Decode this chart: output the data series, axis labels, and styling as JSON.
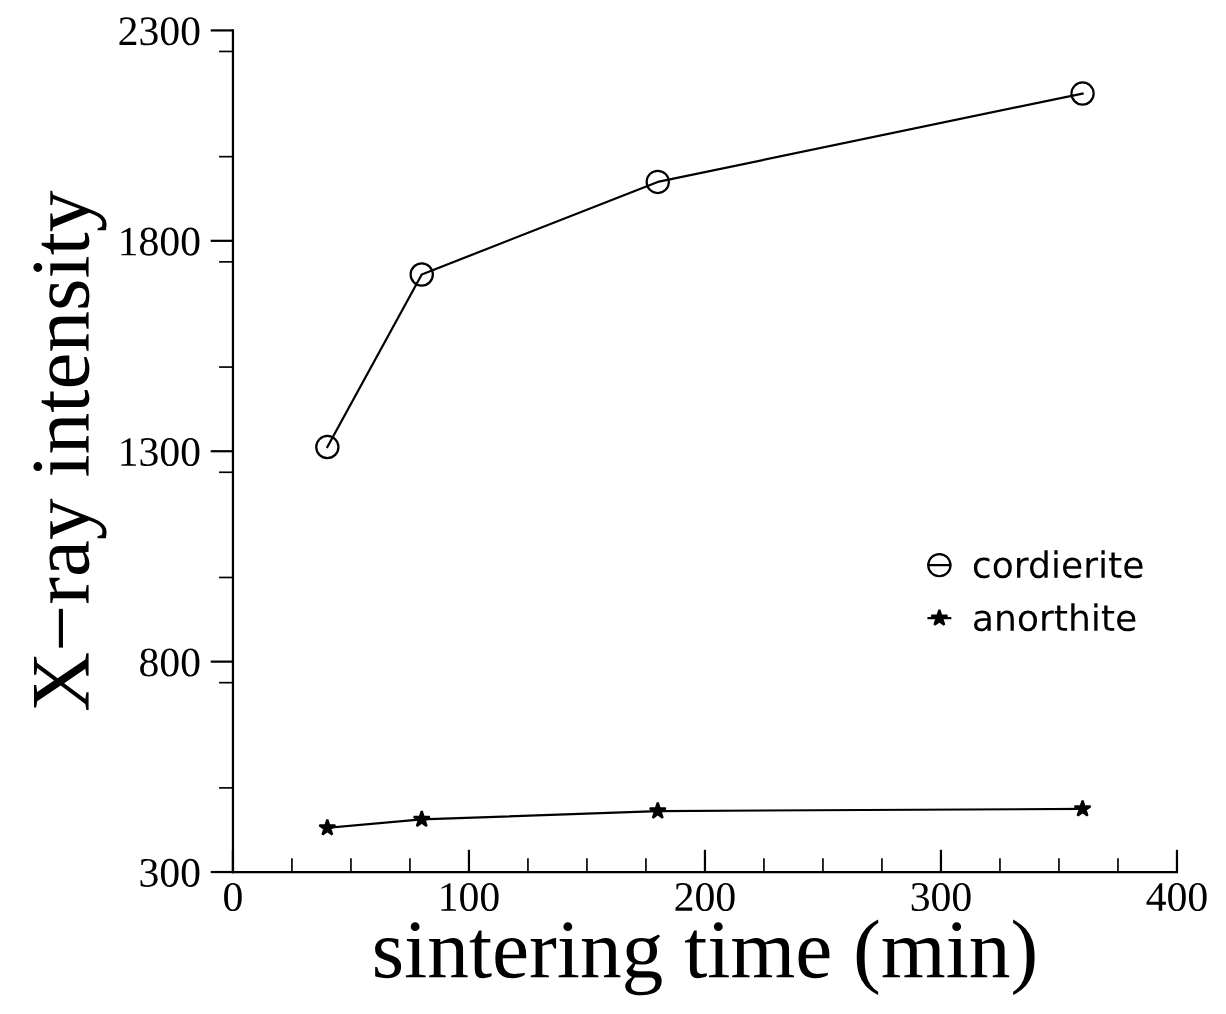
{
  "chart_data": {
    "type": "line",
    "xlabel": "sintering time (min)",
    "ylabel": "X−ray intensity",
    "x": [
      40,
      80,
      180,
      360
    ],
    "series": [
      {
        "name": "cordierite",
        "color": "#000000",
        "marker": "circle",
        "values": [
          1310,
          1720,
          1940,
          2150
        ]
      },
      {
        "name": "anorthite",
        "color": "#000000",
        "marker": "star",
        "values": [
          405,
          425,
          445,
          450
        ]
      }
    ],
    "xlim": [
      0,
      400
    ],
    "xticks": [
      0,
      100,
      200,
      300,
      400
    ],
    "ylim": [
      300,
      2300
    ],
    "yticks": [
      300,
      800,
      1300,
      1800,
      2300
    ],
    "line_style": "solid",
    "grid": false,
    "legend": "right"
  }
}
